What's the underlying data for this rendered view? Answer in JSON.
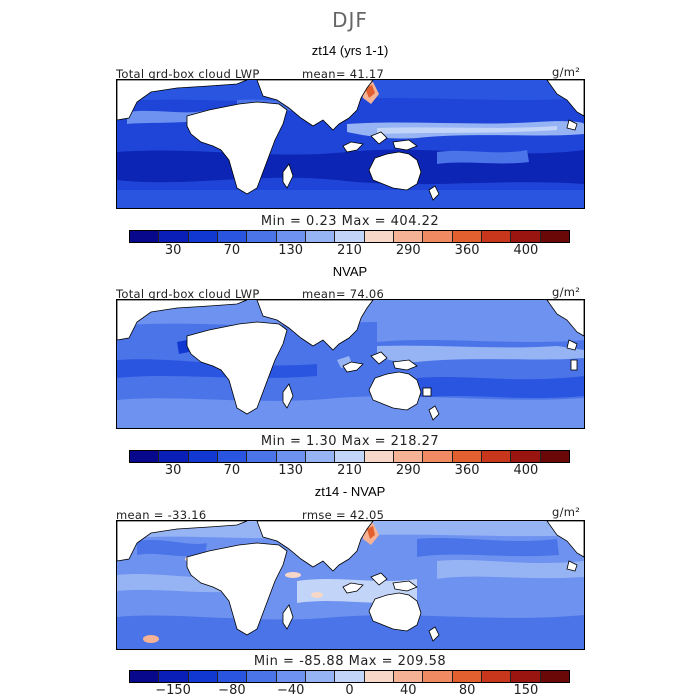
{
  "title": "DJF",
  "palette": [
    "#08088c",
    "#0a1fb8",
    "#1238d2",
    "#2a55e0",
    "#4a74e8",
    "#6e92ef",
    "#96b3f4",
    "#c2d4f8",
    "#f7d8c8",
    "#f5b294",
    "#f08a62",
    "#e2602f",
    "#c8361b",
    "#9a1510",
    "#6a0808"
  ],
  "chart_data": [
    {
      "type": "heatmap",
      "name": "panel1",
      "title": "zt14 (yrs 1-1)",
      "label_left": "Total grd-box cloud LWP",
      "stat_left": "",
      "stat_center": "mean=  41.17",
      "units": "g/m²",
      "min_max": "Min =    0.23 Max = 404.22",
      "colorbar_ticks": [
        "30",
        "70",
        "130",
        "210",
        "290",
        "360",
        "400"
      ],
      "colorbar_levels": [
        0,
        30,
        50,
        70,
        100,
        130,
        170,
        210,
        250,
        290,
        330,
        360,
        380,
        400,
        420
      ]
    },
    {
      "type": "heatmap",
      "name": "panel2",
      "title": "NVAP",
      "label_left": "Total grd-box cloud LWP",
      "stat_left": "",
      "stat_center": "mean=  74.06",
      "units": "g/m²",
      "min_max": "Min =    1.30 Max = 218.27",
      "colorbar_ticks": [
        "30",
        "70",
        "130",
        "210",
        "290",
        "360",
        "400"
      ],
      "colorbar_levels": [
        0,
        30,
        50,
        70,
        100,
        130,
        170,
        210,
        250,
        290,
        330,
        360,
        380,
        400,
        420
      ]
    },
    {
      "type": "heatmap",
      "name": "panel3",
      "title": "zt14 - NVAP",
      "label_left": "",
      "stat_left": "mean = -33.16",
      "stat_center": "rmse =   42.05",
      "units": "g/m²",
      "min_max": "Min = -85.88 Max = 209.58",
      "colorbar_ticks": [
        "−150",
        "−80",
        "−40",
        "0",
        "40",
        "80",
        "150"
      ],
      "colorbar_levels": [
        -200,
        -150,
        -120,
        -80,
        -60,
        -40,
        -20,
        0,
        20,
        40,
        60,
        80,
        120,
        150,
        200
      ]
    }
  ]
}
